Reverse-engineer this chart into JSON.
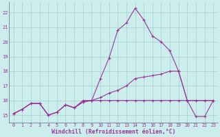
{
  "xlabel": "Windchill (Refroidissement éolien,°C)",
  "background_color": "#cbeeed",
  "grid_color": "#a8cccc",
  "line_color": "#993399",
  "xlim": [
    -0.5,
    23.5
  ],
  "ylim": [
    14.5,
    22.7
  ],
  "yticks": [
    15,
    16,
    17,
    18,
    19,
    20,
    21,
    22
  ],
  "xticks": [
    0,
    1,
    2,
    3,
    4,
    5,
    6,
    7,
    8,
    9,
    10,
    11,
    12,
    13,
    14,
    15,
    16,
    17,
    18,
    19,
    20,
    21,
    22,
    23
  ],
  "temp": [
    15.1,
    15.4,
    15.8,
    15.8,
    15.0,
    15.2,
    15.7,
    15.5,
    16.0,
    16.0,
    17.5,
    18.9,
    20.8,
    21.3,
    22.3,
    21.5,
    20.4,
    20.0,
    19.4,
    18.0,
    16.0,
    14.9,
    14.9,
    16.0
  ],
  "windchill": [
    15.1,
    15.4,
    15.8,
    15.8,
    15.0,
    15.2,
    15.7,
    15.5,
    15.9,
    16.0,
    16.2,
    16.5,
    16.7,
    17.0,
    17.5,
    17.6,
    17.7,
    17.8,
    18.0,
    18.0,
    16.0,
    16.0,
    16.0,
    16.0
  ],
  "flat": [
    15.1,
    15.4,
    15.8,
    15.8,
    15.0,
    15.2,
    15.7,
    15.5,
    15.9,
    16.0,
    16.0,
    16.0,
    16.0,
    16.0,
    16.0,
    16.0,
    16.0,
    16.0,
    16.0,
    16.0,
    16.0,
    16.0,
    16.0,
    16.0
  ]
}
